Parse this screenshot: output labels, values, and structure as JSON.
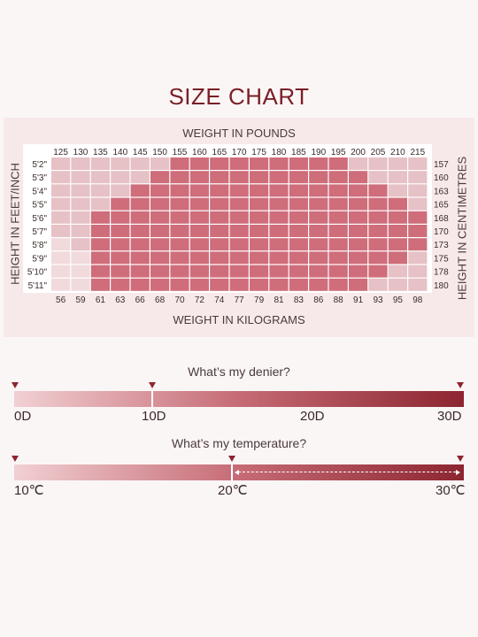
{
  "title": "SIZE CHART",
  "chart_data": {
    "type": "heatmap",
    "x_top_label": "WEIGHT IN POUNDS",
    "x_bottom_label": "WEIGHT IN KILOGRAMS",
    "y_left_label": "HEIGHT IN FEET/INCH",
    "y_right_label": "HEIGHT IN CENTIMETRES",
    "pounds": [
      "125",
      "130",
      "135",
      "140",
      "145",
      "150",
      "155",
      "160",
      "165",
      "170",
      "175",
      "180",
      "185",
      "190",
      "195",
      "200",
      "205",
      "210",
      "215"
    ],
    "kilograms": [
      "56",
      "59",
      "61",
      "63",
      "66",
      "68",
      "70",
      "72",
      "74",
      "77",
      "79",
      "81",
      "83",
      "86",
      "88",
      "91",
      "93",
      "95",
      "98"
    ],
    "heights_ft": [
      "5'2\"",
      "5'3\"",
      "5'4\"",
      "5'5\"",
      "5'6\"",
      "5'7\"",
      "5'8\"",
      "5'9\"",
      "5'10\"",
      "5'11\""
    ],
    "heights_cm": [
      "157",
      "160",
      "163",
      "165",
      "168",
      "170",
      "173",
      "175",
      "178",
      "180"
    ],
    "colors": {
      "0": "#f0dadc",
      "1": "#e6c1c5",
      "2": "#cf6d7b"
    },
    "grid": [
      [
        1,
        1,
        1,
        1,
        1,
        1,
        2,
        2,
        2,
        2,
        2,
        2,
        2,
        2,
        2,
        1,
        1,
        1,
        1
      ],
      [
        1,
        1,
        1,
        1,
        1,
        2,
        2,
        2,
        2,
        2,
        2,
        2,
        2,
        2,
        2,
        2,
        1,
        1,
        1
      ],
      [
        1,
        1,
        1,
        1,
        2,
        2,
        2,
        2,
        2,
        2,
        2,
        2,
        2,
        2,
        2,
        2,
        2,
        1,
        1
      ],
      [
        1,
        1,
        1,
        2,
        2,
        2,
        2,
        2,
        2,
        2,
        2,
        2,
        2,
        2,
        2,
        2,
        2,
        2,
        1
      ],
      [
        1,
        1,
        2,
        2,
        2,
        2,
        2,
        2,
        2,
        2,
        2,
        2,
        2,
        2,
        2,
        2,
        2,
        2,
        2
      ],
      [
        1,
        1,
        2,
        2,
        2,
        2,
        2,
        2,
        2,
        2,
        2,
        2,
        2,
        2,
        2,
        2,
        2,
        2,
        2
      ],
      [
        0,
        1,
        2,
        2,
        2,
        2,
        2,
        2,
        2,
        2,
        2,
        2,
        2,
        2,
        2,
        2,
        2,
        2,
        2
      ],
      [
        0,
        0,
        2,
        2,
        2,
        2,
        2,
        2,
        2,
        2,
        2,
        2,
        2,
        2,
        2,
        2,
        2,
        2,
        1
      ],
      [
        0,
        0,
        2,
        2,
        2,
        2,
        2,
        2,
        2,
        2,
        2,
        2,
        2,
        2,
        2,
        2,
        2,
        1,
        1
      ],
      [
        0,
        0,
        2,
        2,
        2,
        2,
        2,
        2,
        2,
        2,
        2,
        2,
        2,
        2,
        2,
        2,
        1,
        1,
        1
      ]
    ]
  },
  "denier_scale": {
    "title": "What’s my denier?",
    "labels": [
      "0D",
      "10D",
      "20D",
      "30D"
    ]
  },
  "temperature_scale": {
    "title": "What’s my temperature?",
    "labels": [
      "10℃",
      "20℃",
      "30℃"
    ]
  }
}
